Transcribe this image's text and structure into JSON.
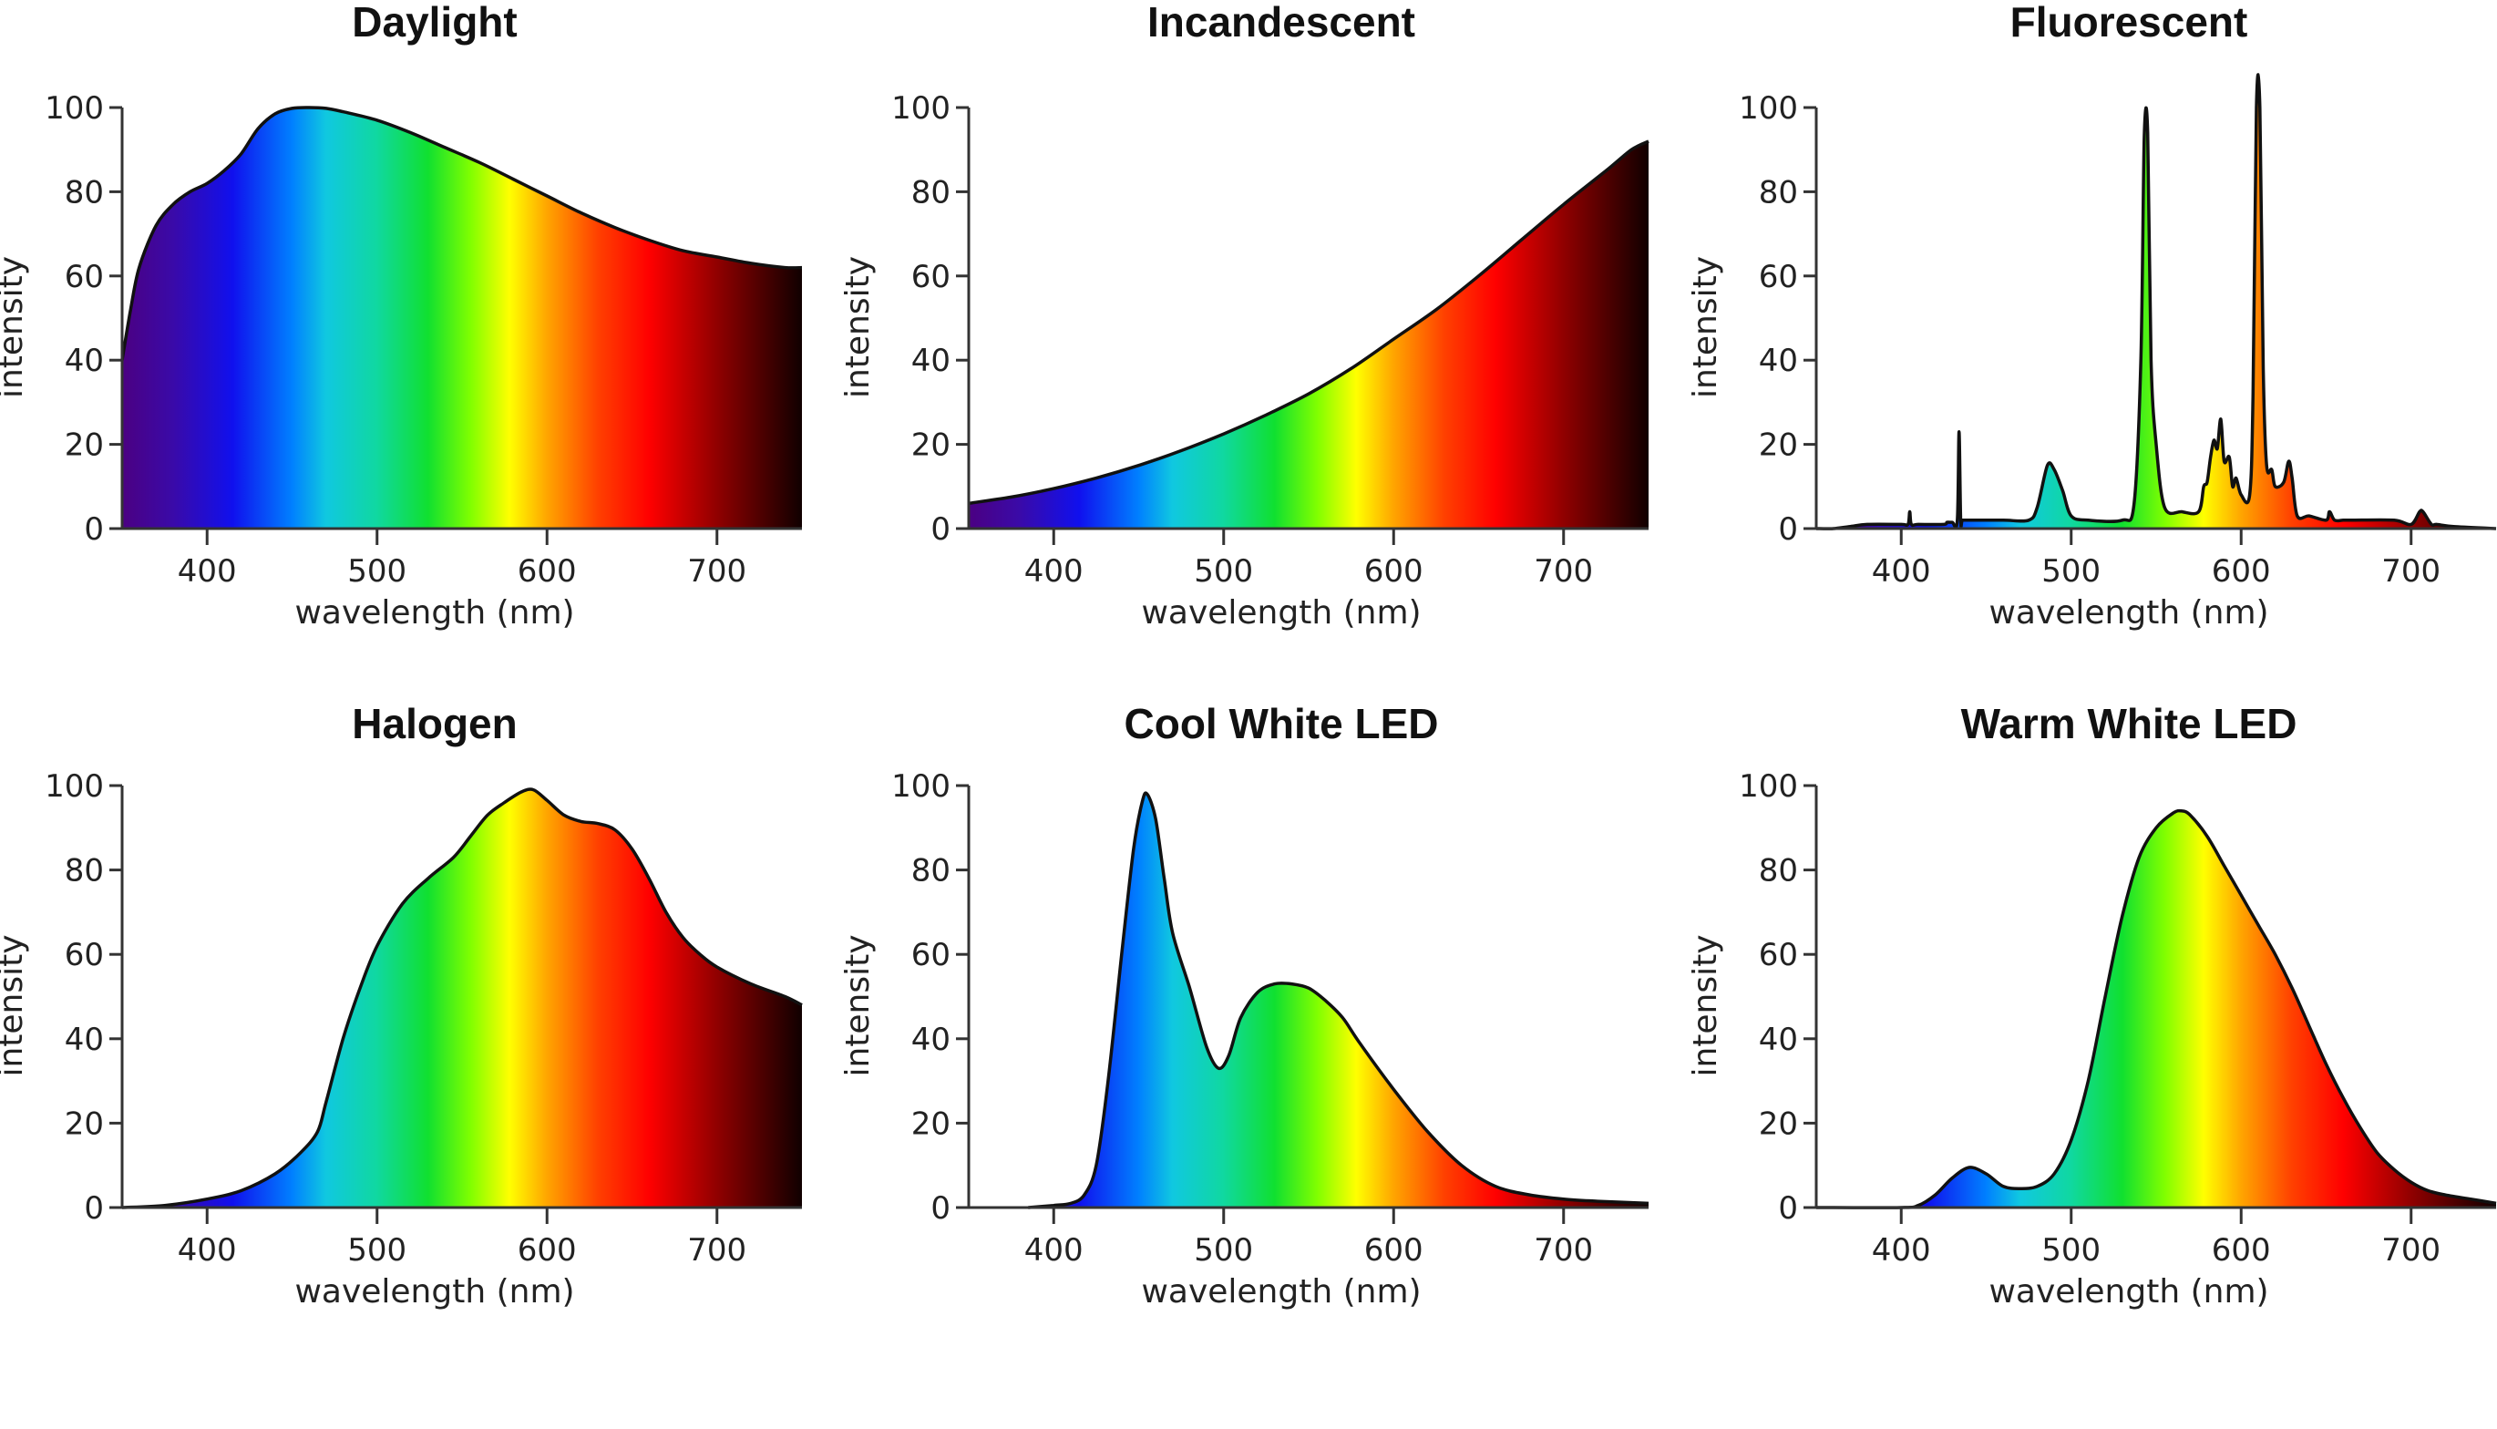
{
  "chart_data": [
    {
      "type": "area",
      "title": "Daylight",
      "xlabel": "wavelength (nm)",
      "ylabel": "intensity",
      "xlim": [
        350,
        750
      ],
      "ylim": [
        0,
        100
      ],
      "xticks": [
        400,
        500,
        600,
        700
      ],
      "yticks": [
        0,
        20,
        40,
        60,
        80,
        100
      ],
      "grid": false,
      "x": [
        350,
        355,
        360,
        370,
        380,
        390,
        400,
        410,
        420,
        430,
        440,
        450,
        460,
        470,
        480,
        500,
        520,
        540,
        560,
        580,
        600,
        620,
        640,
        660,
        680,
        700,
        720,
        740,
        750
      ],
      "values": [
        40,
        52,
        62,
        72,
        77,
        80,
        82,
        85,
        89,
        95,
        98.5,
        99.8,
        100,
        99.8,
        99,
        97,
        94,
        90.5,
        87,
        83,
        79,
        75,
        71.5,
        68.5,
        66,
        64.5,
        63,
        62,
        62
      ]
    },
    {
      "type": "area",
      "title": "Incandescent",
      "xlabel": "wavelength (nm)",
      "ylabel": "intensity",
      "xlim": [
        350,
        750
      ],
      "ylim": [
        0,
        100
      ],
      "xticks": [
        400,
        500,
        600,
        700
      ],
      "yticks": [
        0,
        20,
        40,
        60,
        80,
        100
      ],
      "grid": false,
      "x": [
        350,
        375,
        400,
        425,
        450,
        475,
        500,
        525,
        550,
        575,
        600,
        625,
        650,
        675,
        700,
        725,
        740,
        750
      ],
      "values": [
        6,
        7.5,
        9.5,
        12,
        15,
        18.5,
        22.5,
        27,
        32,
        38,
        45,
        52,
        60,
        68.5,
        77,
        85,
        90,
        92
      ]
    },
    {
      "type": "area",
      "title": "Fluorescent",
      "xlabel": "wavelength (nm)",
      "ylabel": "intensity",
      "xlim": [
        350,
        750
      ],
      "ylim": [
        0,
        100
      ],
      "xticks": [
        400,
        500,
        600,
        700
      ],
      "yticks": [
        0,
        20,
        40,
        60,
        80,
        100
      ],
      "grid": false,
      "x": [
        350,
        360,
        370,
        380,
        400,
        404,
        405,
        406,
        410,
        425,
        427,
        430,
        433,
        434,
        435,
        436,
        440,
        460,
        475,
        480,
        486,
        490,
        495,
        500,
        510,
        530,
        537,
        541,
        543,
        545,
        547,
        550,
        555,
        565,
        575,
        578,
        580,
        582,
        584,
        586,
        588,
        590,
        593,
        595,
        597,
        600,
        605,
        607,
        609,
        611,
        613,
        615,
        618,
        620,
        625,
        628,
        630,
        633,
        640,
        650,
        652,
        655,
        660,
        665,
        690,
        700,
        705,
        707,
        712,
        715,
        725,
        750
      ],
      "values": [
        0,
        0,
        0.5,
        1,
        1,
        1,
        4,
        1,
        1,
        1,
        1.5,
        1.5,
        2,
        23,
        2,
        2,
        2,
        2,
        2,
        5,
        15,
        14,
        9,
        3,
        2,
        2,
        6,
        40,
        93,
        94,
        40,
        20,
        5,
        4,
        4,
        10,
        11,
        17,
        21,
        19,
        26,
        16,
        17,
        10,
        12,
        8,
        8,
        32,
        100,
        100,
        38,
        15,
        14,
        10,
        11,
        16,
        12,
        3,
        3,
        2,
        4,
        2,
        2,
        2,
        2,
        1,
        4,
        4,
        1,
        1,
        0.5,
        0
      ]
    },
    {
      "type": "area",
      "title": "Halogen",
      "xlabel": "wavelength (nm)",
      "ylabel": "intensity",
      "xlim": [
        350,
        750
      ],
      "ylim": [
        0,
        100
      ],
      "xticks": [
        400,
        500,
        600,
        700
      ],
      "yticks": [
        0,
        20,
        40,
        60,
        80,
        100
      ],
      "grid": false,
      "x": [
        350,
        375,
        400,
        420,
        440,
        455,
        465,
        470,
        480,
        490,
        500,
        515,
        530,
        545,
        555,
        565,
        575,
        585,
        592,
        600,
        610,
        620,
        630,
        640,
        650,
        660,
        670,
        680,
        690,
        700,
        720,
        740,
        750
      ],
      "values": [
        0,
        0.5,
        2,
        4,
        8,
        13,
        18,
        25,
        40,
        52,
        62,
        72,
        78,
        83,
        88,
        93,
        96,
        98.5,
        99,
        96.5,
        93,
        91.5,
        91,
        89.5,
        85,
        78,
        70,
        64,
        60,
        57,
        53,
        50,
        48
      ]
    },
    {
      "type": "area",
      "title": "Cool White LED",
      "xlabel": "wavelength (nm)",
      "ylabel": "intensity",
      "xlim": [
        350,
        750
      ],
      "ylim": [
        0,
        100
      ],
      "xticks": [
        400,
        500,
        600,
        700
      ],
      "yticks": [
        0,
        20,
        40,
        60,
        80,
        100
      ],
      "grid": false,
      "x": [
        385,
        400,
        410,
        418,
        425,
        432,
        440,
        447,
        452,
        455,
        460,
        465,
        470,
        480,
        490,
        497,
        503,
        510,
        520,
        530,
        540,
        550,
        560,
        570,
        580,
        600,
        620,
        640,
        660,
        680,
        700,
        720,
        750
      ],
      "values": [
        0,
        0.5,
        1,
        3,
        10,
        30,
        60,
        85,
        96,
        98,
        92,
        78,
        65,
        52,
        38,
        33,
        36,
        45,
        51,
        53,
        53,
        52,
        49,
        45,
        39,
        28,
        18,
        10,
        5,
        3,
        2,
        1.5,
        1
      ]
    },
    {
      "type": "area",
      "title": "Warm White LED",
      "xlabel": "wavelength (nm)",
      "ylabel": "intensity",
      "xlim": [
        350,
        750
      ],
      "ylim": [
        0,
        100
      ],
      "xticks": [
        400,
        500,
        600,
        700
      ],
      "yticks": [
        0,
        20,
        40,
        60,
        80,
        100
      ],
      "grid": false,
      "x": [
        350,
        400,
        410,
        420,
        430,
        440,
        450,
        460,
        470,
        480,
        490,
        500,
        510,
        520,
        530,
        540,
        550,
        560,
        565,
        570,
        580,
        590,
        600,
        610,
        620,
        630,
        640,
        650,
        660,
        670,
        680,
        690,
        700,
        710,
        720,
        735,
        750
      ],
      "values": [
        0,
        0,
        0.5,
        3,
        7,
        9.5,
        8,
        5,
        4.5,
        5,
        8,
        16,
        30,
        50,
        69,
        83,
        90,
        93.5,
        94,
        93,
        88,
        81,
        74,
        67,
        60,
        52,
        43,
        34,
        26,
        19,
        13,
        9,
        6,
        4,
        3,
        2,
        1
      ]
    }
  ],
  "colors": {
    "spectrum_stops": [
      {
        "nm": 350,
        "color": "#4b0082"
      },
      {
        "nm": 380,
        "color": "#3a0aa8"
      },
      {
        "nm": 415,
        "color": "#1010ee"
      },
      {
        "nm": 450,
        "color": "#0080ff"
      },
      {
        "nm": 470,
        "color": "#10c8e0"
      },
      {
        "nm": 500,
        "color": "#10d8a0"
      },
      {
        "nm": 530,
        "color": "#10e030"
      },
      {
        "nm": 555,
        "color": "#80ff00"
      },
      {
        "nm": 578,
        "color": "#ffff00"
      },
      {
        "nm": 600,
        "color": "#ffa500"
      },
      {
        "nm": 630,
        "color": "#ff4000"
      },
      {
        "nm": 660,
        "color": "#ff0000"
      },
      {
        "nm": 700,
        "color": "#900000"
      },
      {
        "nm": 750,
        "color": "#100000"
      }
    ],
    "outline": "#111111"
  }
}
